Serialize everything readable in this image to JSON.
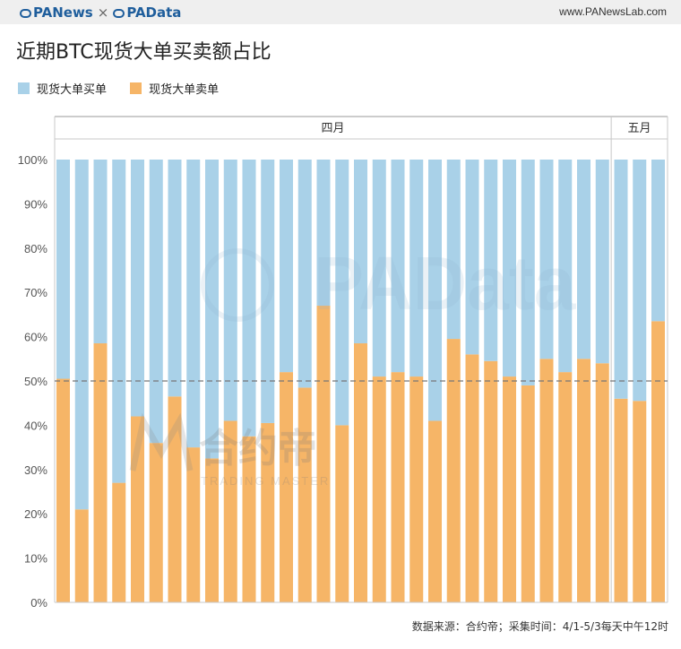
{
  "header": {
    "brand_left": "PANews",
    "brand_sep": "×",
    "brand_right": "PAData",
    "site": "www.PANewsLab.com"
  },
  "title": "近期BTC现货大单买卖额占比",
  "legend": [
    {
      "label": "现货大单买单",
      "color": "#a9d1e8"
    },
    {
      "label": "现货大单卖单",
      "color": "#f6b567"
    }
  ],
  "watermark": {
    "padata": "PAData",
    "cn": "合约帝",
    "en": "TRADING MASTER"
  },
  "footer": "数据来源：合约帝；采集时间：4/1-5/3每天中午12时",
  "chart_data": {
    "type": "bar",
    "stacked": true,
    "months": [
      {
        "label": "四月",
        "count": 30
      },
      {
        "label": "五月",
        "count": 3
      }
    ],
    "yticks": [
      "0%",
      "10%",
      "20%",
      "30%",
      "40%",
      "50%",
      "60%",
      "70%",
      "80%",
      "90%",
      "100%"
    ],
    "ylim": [
      0,
      100
    ],
    "reference_line": 50,
    "series": [
      {
        "name": "现货大单卖单",
        "color": "#f6b567",
        "values": [
          50.5,
          21,
          58.5,
          27,
          42,
          36,
          46.5,
          35,
          32.5,
          41,
          37.5,
          40.5,
          52,
          48.5,
          67,
          40,
          58.5,
          51,
          52,
          51,
          41,
          59.5,
          56,
          54.5,
          51,
          49,
          55,
          52,
          55,
          54,
          46,
          45.5,
          63.5
        ]
      },
      {
        "name": "现货大单买单",
        "color": "#a9d1e8",
        "values": [
          49.5,
          79,
          41.5,
          73,
          58,
          64,
          53.5,
          65,
          67.5,
          59,
          62.5,
          59.5,
          48,
          51.5,
          33,
          60,
          41.5,
          49,
          48,
          49,
          59,
          40.5,
          44,
          45.5,
          49,
          51,
          45,
          48,
          45,
          46,
          54,
          54.5,
          36.5
        ]
      }
    ],
    "grid": false
  }
}
